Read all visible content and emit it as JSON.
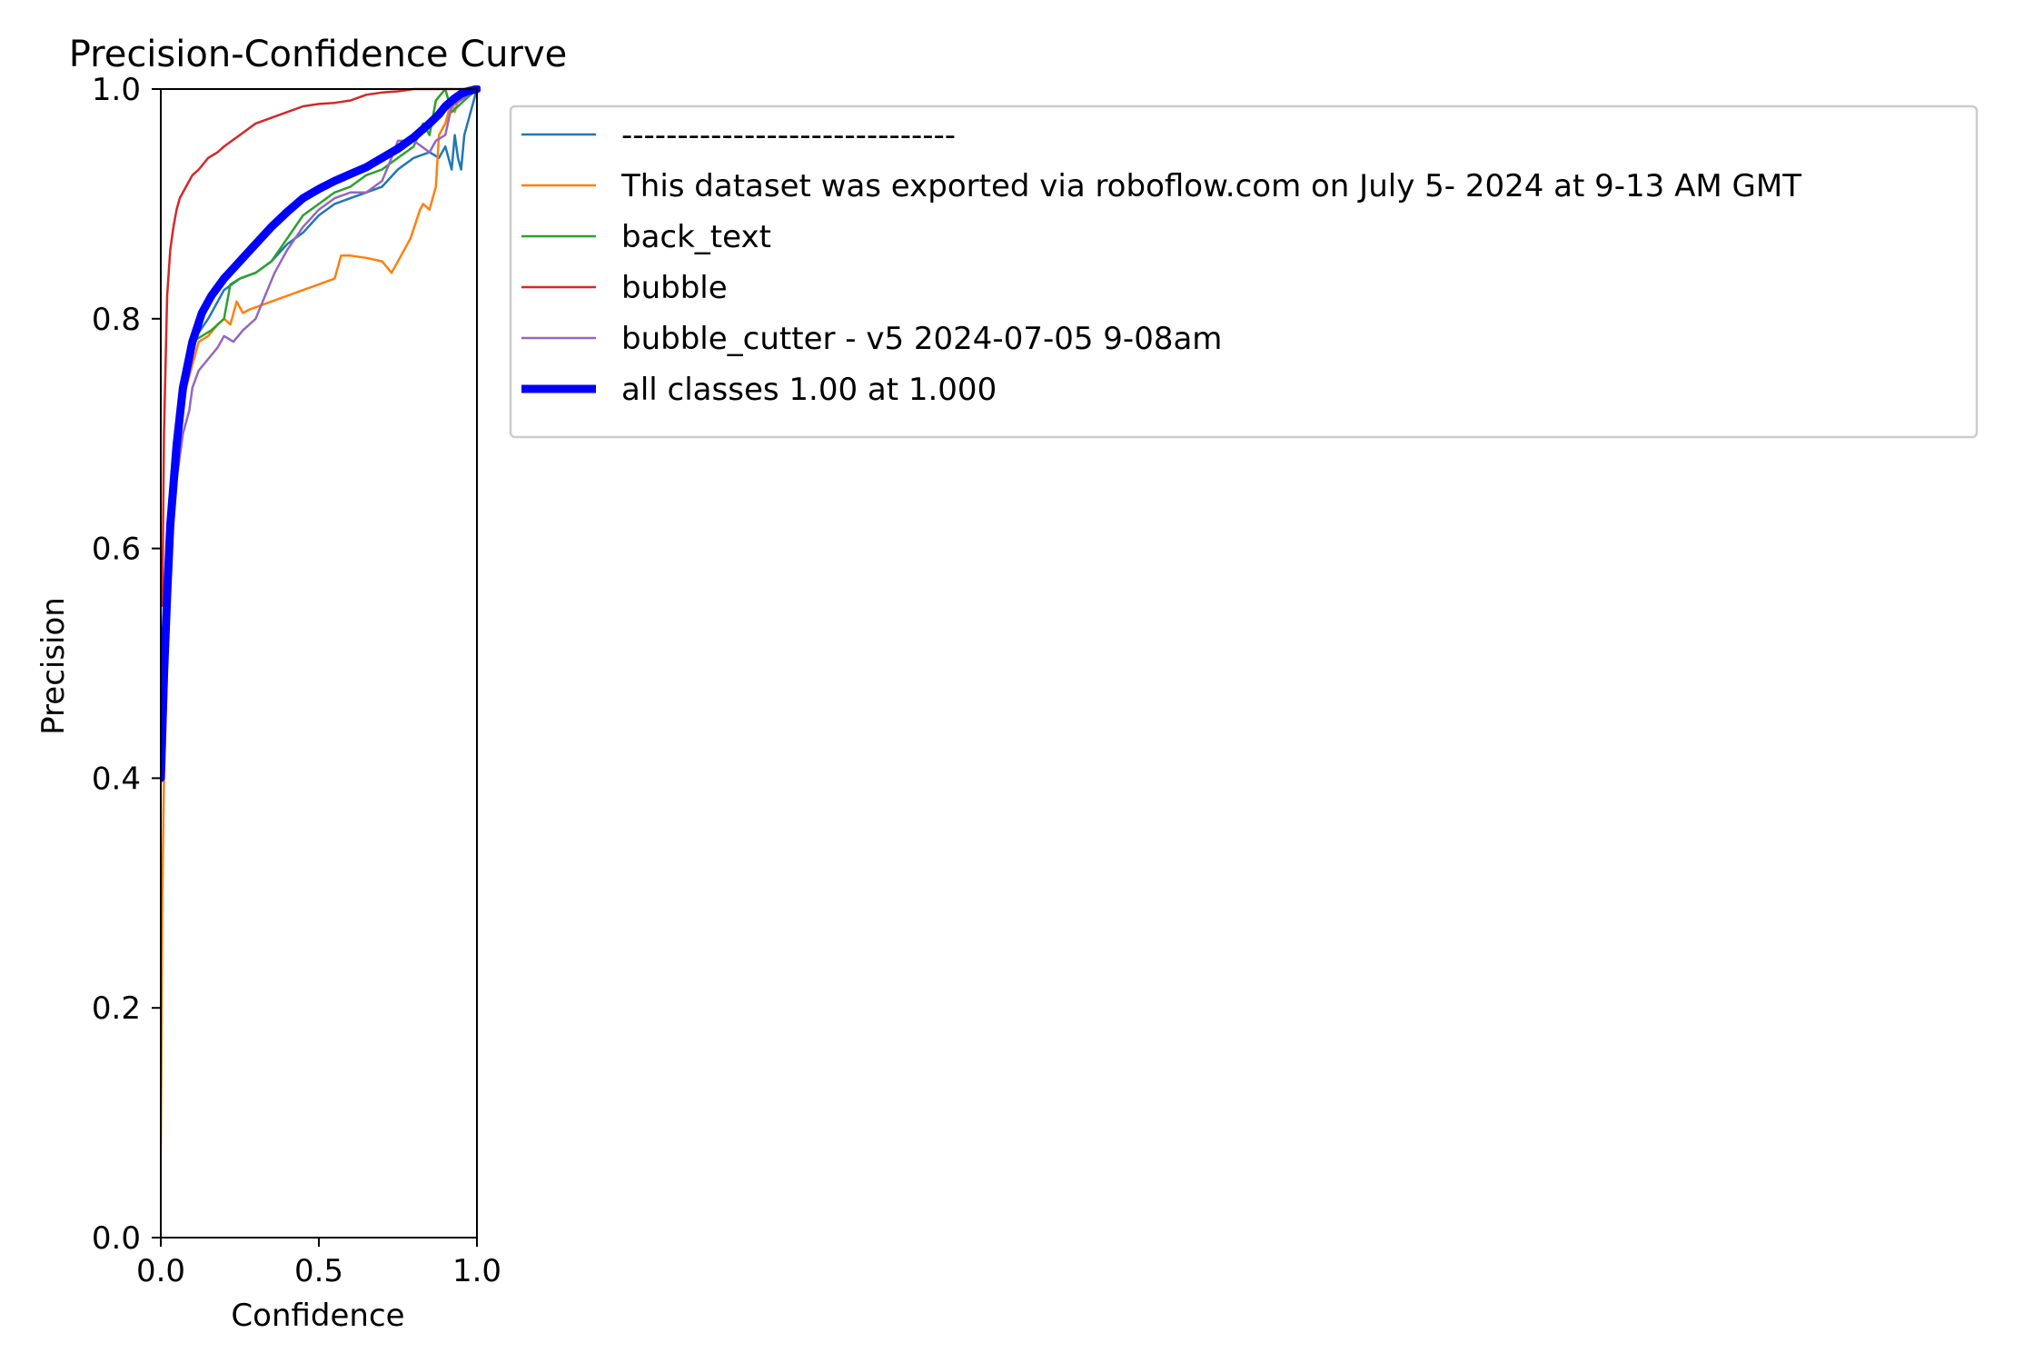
{
  "chart_data": {
    "type": "line",
    "title": "Precision-Confidence Curve",
    "xlabel": "Confidence",
    "ylabel": "Precision",
    "xlim": [
      0.0,
      1.0
    ],
    "ylim": [
      0.0,
      1.0
    ],
    "xticks": [
      "0.0",
      "0.5",
      "1.0"
    ],
    "yticks": [
      "0.0",
      "0.2",
      "0.4",
      "0.6",
      "0.8",
      "1.0"
    ],
    "grid": false,
    "legend_position": "outside-right-top",
    "series": [
      {
        "name": "------------------------------",
        "color": "#1f77b4",
        "x": [
          0.01,
          0.05,
          0.1,
          0.15,
          0.2,
          0.25,
          0.3,
          0.35,
          0.4,
          0.45,
          0.5,
          0.55,
          0.6,
          0.65,
          0.7,
          0.75,
          0.8,
          0.85,
          0.88,
          0.9,
          0.92,
          0.93,
          0.94,
          0.95,
          0.96,
          1.0
        ],
        "y": [
          0.5,
          0.7,
          0.78,
          0.8,
          0.825,
          0.835,
          0.84,
          0.85,
          0.865,
          0.875,
          0.89,
          0.9,
          0.905,
          0.91,
          0.915,
          0.93,
          0.94,
          0.945,
          0.94,
          0.95,
          0.93,
          0.96,
          0.94,
          0.93,
          0.96,
          1.0
        ]
      },
      {
        "name": "This dataset was exported via roboflow.com on July 5- 2024 at 9-13 AM GMT",
        "color": "#ff7f0e",
        "x": [
          0.0,
          0.005,
          0.01,
          0.02,
          0.03,
          0.05,
          0.07,
          0.1,
          0.12,
          0.15,
          0.18,
          0.2,
          0.22,
          0.24,
          0.26,
          0.28,
          0.3,
          0.35,
          0.4,
          0.45,
          0.5,
          0.55,
          0.57,
          0.6,
          0.65,
          0.7,
          0.73,
          0.76,
          0.79,
          0.82,
          0.83,
          0.85,
          0.87,
          0.88,
          0.9,
          0.92,
          0.93,
          0.94,
          0.95,
          1.0
        ],
        "y": [
          0.08,
          0.3,
          0.4,
          0.5,
          0.6,
          0.68,
          0.73,
          0.76,
          0.78,
          0.785,
          0.795,
          0.8,
          0.795,
          0.815,
          0.805,
          0.808,
          0.81,
          0.815,
          0.82,
          0.825,
          0.83,
          0.835,
          0.855,
          0.855,
          0.853,
          0.85,
          0.84,
          0.855,
          0.87,
          0.895,
          0.9,
          0.895,
          0.915,
          0.96,
          0.97,
          0.99,
          0.98,
          0.99,
          1.0,
          1.0
        ]
      },
      {
        "name": "back_text",
        "color": "#2ca02c",
        "x": [
          0.01,
          0.03,
          0.05,
          0.07,
          0.1,
          0.13,
          0.16,
          0.2,
          0.22,
          0.25,
          0.3,
          0.35,
          0.4,
          0.45,
          0.5,
          0.55,
          0.6,
          0.65,
          0.7,
          0.75,
          0.8,
          0.83,
          0.85,
          0.87,
          0.9,
          0.92,
          1.0
        ],
        "y": [
          0.55,
          0.64,
          0.7,
          0.75,
          0.78,
          0.785,
          0.79,
          0.8,
          0.83,
          0.835,
          0.84,
          0.85,
          0.87,
          0.89,
          0.9,
          0.91,
          0.915,
          0.925,
          0.93,
          0.94,
          0.95,
          0.97,
          0.96,
          0.99,
          1.0,
          0.98,
          1.0
        ]
      },
      {
        "name": "bubble",
        "color": "#d62728",
        "x": [
          0.005,
          0.01,
          0.02,
          0.03,
          0.04,
          0.05,
          0.06,
          0.08,
          0.1,
          0.12,
          0.15,
          0.18,
          0.2,
          0.25,
          0.3,
          0.35,
          0.4,
          0.45,
          0.5,
          0.55,
          0.6,
          0.65,
          0.7,
          0.75,
          0.8,
          0.85,
          1.0
        ],
        "y": [
          0.55,
          0.7,
          0.82,
          0.86,
          0.88,
          0.895,
          0.905,
          0.915,
          0.925,
          0.93,
          0.94,
          0.945,
          0.95,
          0.96,
          0.97,
          0.975,
          0.98,
          0.985,
          0.987,
          0.988,
          0.99,
          0.995,
          0.997,
          0.998,
          1.0,
          1.0,
          1.0
        ]
      },
      {
        "name": "bubble_cutter - v5 2024-07-05 9-08am",
        "color": "#9467bd",
        "x": [
          0.01,
          0.03,
          0.05,
          0.07,
          0.09,
          0.1,
          0.12,
          0.15,
          0.18,
          0.2,
          0.23,
          0.26,
          0.3,
          0.33,
          0.36,
          0.4,
          0.45,
          0.5,
          0.55,
          0.6,
          0.65,
          0.7,
          0.73,
          0.75,
          0.8,
          0.85,
          0.87,
          0.9,
          0.92,
          1.0
        ],
        "y": [
          0.5,
          0.6,
          0.66,
          0.7,
          0.72,
          0.74,
          0.755,
          0.765,
          0.775,
          0.785,
          0.78,
          0.79,
          0.8,
          0.82,
          0.84,
          0.86,
          0.88,
          0.895,
          0.905,
          0.91,
          0.91,
          0.92,
          0.94,
          0.955,
          0.955,
          0.945,
          0.955,
          0.96,
          0.985,
          1.0
        ]
      },
      {
        "name": "all classes 1.00 at 1.000",
        "color": "#0000ff",
        "thick": true,
        "x": [
          0.0,
          0.01,
          0.02,
          0.03,
          0.05,
          0.07,
          0.1,
          0.13,
          0.16,
          0.2,
          0.25,
          0.3,
          0.35,
          0.4,
          0.45,
          0.5,
          0.55,
          0.6,
          0.65,
          0.7,
          0.75,
          0.8,
          0.85,
          0.88,
          0.9,
          0.93,
          0.95,
          0.97,
          1.0
        ],
        "y": [
          0.4,
          0.49,
          0.56,
          0.62,
          0.69,
          0.74,
          0.78,
          0.805,
          0.82,
          0.835,
          0.85,
          0.865,
          0.88,
          0.893,
          0.905,
          0.913,
          0.92,
          0.926,
          0.932,
          0.94,
          0.948,
          0.958,
          0.97,
          0.978,
          0.985,
          0.992,
          0.996,
          0.998,
          1.0
        ]
      }
    ]
  }
}
